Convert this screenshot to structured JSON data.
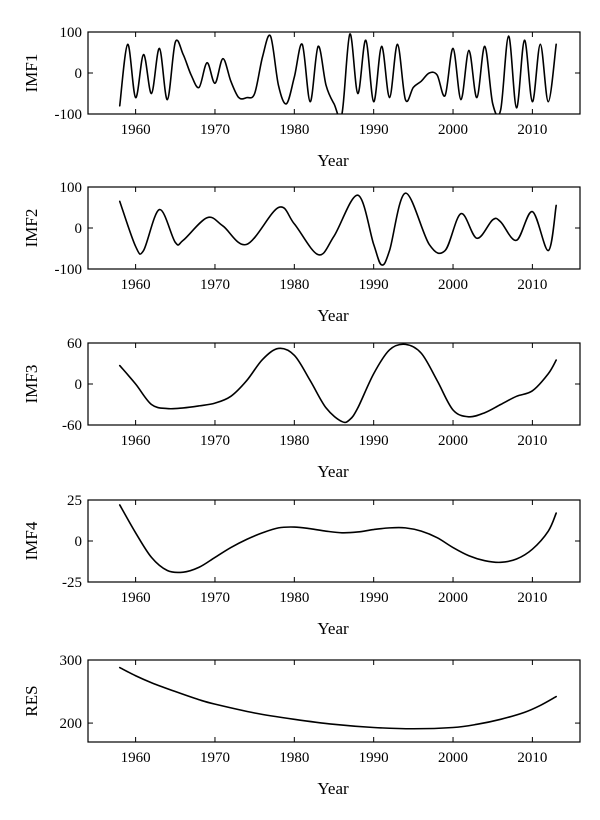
{
  "chart_data": [
    {
      "type": "line",
      "ylabel": "IMF1",
      "xlabel": "Year",
      "xlim": [
        1954,
        2016
      ],
      "ylim": [
        -100,
        100
      ],
      "xticks": [
        1960,
        1970,
        1980,
        1990,
        2000,
        2010
      ],
      "yticks": [
        -100,
        0,
        100
      ],
      "x": [
        1958,
        1959,
        1960,
        1961,
        1962,
        1963,
        1964,
        1965,
        1966,
        1967,
        1968,
        1969,
        1970,
        1971,
        1972,
        1973,
        1974,
        1975,
        1976,
        1977,
        1978,
        1979,
        1980,
        1981,
        1982,
        1983,
        1984,
        1985,
        1986,
        1987,
        1988,
        1989,
        1990,
        1991,
        1992,
        1993,
        1994,
        1995,
        1996,
        1997,
        1998,
        1999,
        2000,
        2001,
        2002,
        2003,
        2004,
        2005,
        2006,
        2007,
        2008,
        2009,
        2010,
        2011,
        2012,
        2013
      ],
      "y": [
        -80,
        70,
        -60,
        45,
        -50,
        60,
        -65,
        75,
        45,
        -5,
        -35,
        25,
        -25,
        35,
        -20,
        -60,
        -60,
        -50,
        40,
        90,
        -30,
        -75,
        -10,
        70,
        -70,
        65,
        -30,
        -75,
        -100,
        95,
        -50,
        80,
        -70,
        65,
        -60,
        70,
        -65,
        -35,
        -20,
        0,
        -5,
        -55,
        60,
        -65,
        55,
        -60,
        65,
        -75,
        -90,
        90,
        -85,
        80,
        -70,
        70,
        -70,
        70
      ]
    },
    {
      "type": "line",
      "ylabel": "IMF2",
      "xlabel": "Year",
      "xlim": [
        1954,
        2016
      ],
      "ylim": [
        -100,
        100
      ],
      "xticks": [
        1960,
        1970,
        1980,
        1990,
        2000,
        2010
      ],
      "yticks": [
        -100,
        0,
        100
      ],
      "x": [
        1958,
        1960,
        1961,
        1963,
        1965,
        1966,
        1969,
        1971,
        1974,
        1978,
        1980,
        1983,
        1985,
        1988,
        1990,
        1991,
        1992,
        1994,
        1997,
        1999,
        2001,
        2003,
        2005,
        2006,
        2008,
        2010,
        2012,
        2013
      ],
      "y": [
        65,
        -45,
        -55,
        45,
        -35,
        -30,
        25,
        5,
        -40,
        50,
        10,
        -65,
        -20,
        80,
        -40,
        -90,
        -55,
        85,
        -40,
        -55,
        35,
        -25,
        20,
        15,
        -30,
        40,
        -55,
        55
      ]
    },
    {
      "type": "line",
      "ylabel": "IMF3",
      "xlabel": "Year",
      "xlim": [
        1954,
        2016
      ],
      "ylim": [
        -60,
        60
      ],
      "xticks": [
        1960,
        1970,
        1980,
        1990,
        2000,
        2010
      ],
      "yticks": [
        -60,
        0,
        60
      ],
      "x": [
        1958,
        1960,
        1962,
        1964,
        1966,
        1968,
        1970,
        1972,
        1974,
        1976,
        1978,
        1980,
        1982,
        1984,
        1986,
        1987,
        1988,
        1990,
        1992,
        1994,
        1996,
        1998,
        2000,
        2002,
        2004,
        2006,
        2008,
        2010,
        2012,
        2013
      ],
      "y": [
        27,
        0,
        -30,
        -36,
        -35,
        -32,
        -28,
        -18,
        5,
        36,
        52,
        42,
        5,
        -35,
        -55,
        -52,
        -35,
        15,
        50,
        58,
        45,
        5,
        -38,
        -48,
        -42,
        -30,
        -18,
        -10,
        15,
        35
      ]
    },
    {
      "type": "line",
      "ylabel": "IMF4",
      "xlabel": "Year",
      "xlim": [
        1954,
        2016
      ],
      "ylim": [
        -25,
        25
      ],
      "xticks": [
        1960,
        1970,
        1980,
        1990,
        2000,
        2010
      ],
      "yticks": [
        -25,
        0,
        25
      ],
      "x": [
        1958,
        1960,
        1962,
        1964,
        1966,
        1968,
        1970,
        1972,
        1974,
        1976,
        1978,
        1980,
        1982,
        1984,
        1986,
        1988,
        1990,
        1992,
        1994,
        1996,
        1998,
        2000,
        2002,
        2004,
        2006,
        2008,
        2010,
        2012,
        2013
      ],
      "y": [
        22,
        5,
        -10,
        -18,
        -19,
        -16,
        -10,
        -4,
        1,
        5,
        8,
        8.5,
        7.5,
        6,
        5,
        5.5,
        7,
        8,
        8,
        6,
        2,
        -4,
        -9,
        -12,
        -13,
        -11,
        -5,
        6,
        17
      ]
    },
    {
      "type": "line",
      "ylabel": "RES",
      "xlabel": "Year",
      "xlim": [
        1954,
        2016
      ],
      "ylim": [
        170,
        300
      ],
      "xticks": [
        1960,
        1970,
        1980,
        1990,
        2000,
        2010
      ],
      "yticks": [
        200,
        300
      ],
      "x": [
        1958,
        1960,
        1962,
        1965,
        1968,
        1970,
        1975,
        1980,
        1985,
        1990,
        1995,
        2000,
        2003,
        2006,
        2009,
        2011,
        2013
      ],
      "y": [
        288,
        275,
        264,
        250,
        237,
        230,
        216,
        206,
        198,
        193,
        191,
        193,
        198,
        206,
        217,
        228,
        242
      ]
    }
  ]
}
